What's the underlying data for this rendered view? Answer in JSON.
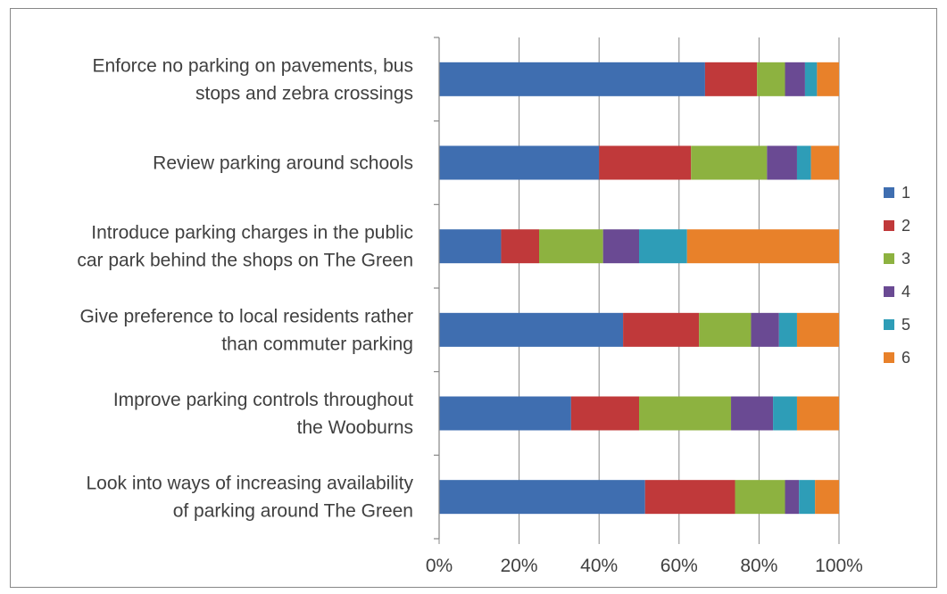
{
  "chart_data": {
    "type": "bar",
    "orientation": "horizontal",
    "stacked": "percent",
    "categories": [
      [
        "Enforce no parking on pavements, bus",
        "stops and zebra crossings"
      ],
      [
        "Review parking around schools"
      ],
      [
        "Introduce parking charges in the public",
        "car park behind the shops on The Green"
      ],
      [
        "Give preference to local residents rather",
        "than commuter parking"
      ],
      [
        "Improve parking controls throughout",
        "the Wooburns"
      ],
      [
        "Look into ways of increasing availability",
        "of parking around The Green"
      ]
    ],
    "series": [
      {
        "name": "1",
        "color": "#3F6EB0",
        "values": [
          66.5,
          40,
          15.5,
          46,
          33,
          51.5
        ]
      },
      {
        "name": "2",
        "color": "#C0393A",
        "values": [
          13,
          23,
          9.5,
          19,
          17,
          22.5
        ]
      },
      {
        "name": "3",
        "color": "#8DB240",
        "values": [
          7,
          19,
          16,
          13,
          23,
          12.5
        ]
      },
      {
        "name": "4",
        "color": "#6A4A93",
        "values": [
          5,
          7.5,
          9,
          7,
          10.5,
          3.5
        ]
      },
      {
        "name": "5",
        "color": "#2E9DB7",
        "values": [
          3,
          3.5,
          12,
          4.5,
          6,
          4
        ]
      },
      {
        "name": "6",
        "color": "#E8812A",
        "values": [
          5.5,
          7,
          38,
          10.5,
          10.5,
          6
        ]
      }
    ],
    "xlim": [
      0,
      100
    ],
    "x_ticks": [
      "0%",
      "20%",
      "40%",
      "60%",
      "80%",
      "100%"
    ],
    "grid": true,
    "legend": "right"
  }
}
